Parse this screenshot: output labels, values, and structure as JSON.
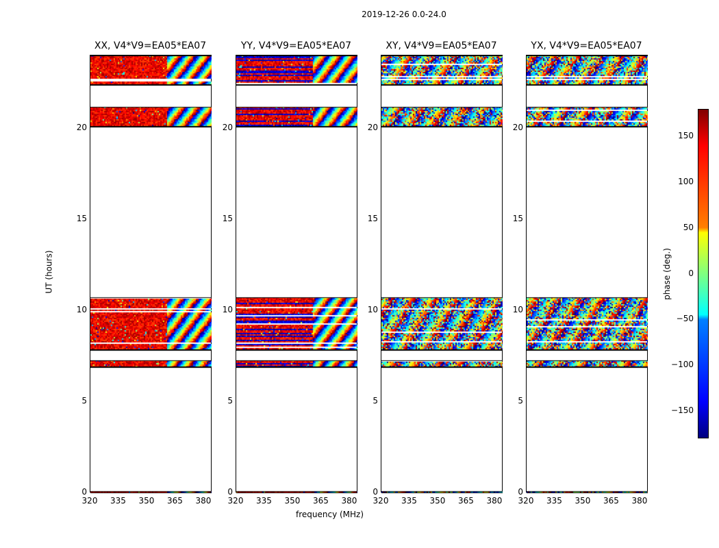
{
  "chart_data": {
    "type": "heatmap",
    "title": "2019-12-26 0.0-24.0",
    "xlabel": "frequency (MHz)",
    "ylabel": "UT (hours)",
    "xlim": [
      320,
      384
    ],
    "ylim": [
      0,
      24
    ],
    "xticks": [
      "320",
      "335",
      "350",
      "365",
      "380"
    ],
    "yticks": [
      "0",
      "5",
      "10",
      "15",
      "20"
    ],
    "panels": [
      {
        "title": "XX, V4*V9=EA05*EA07",
        "style": "parallel-red"
      },
      {
        "title": "YY, V4*V9=EA05*EA07",
        "style": "parallel-redblue"
      },
      {
        "title": "XY, V4*V9=EA05*EA07",
        "style": "cross-noise"
      },
      {
        "title": "YX, V4*V9=EA05*EA07",
        "style": "cross-noise"
      }
    ],
    "data_time_ranges_hours": [
      [
        0,
        0.1
      ],
      [
        6.9,
        7.3
      ],
      [
        7.85,
        10.75
      ],
      [
        20.1,
        21.2
      ],
      [
        22.4,
        24
      ]
    ],
    "colorbar": {
      "label": "phase (deg.)",
      "range": [
        -180,
        180
      ],
      "ticks": [
        "150",
        "100",
        "50",
        "0",
        "−50",
        "−100",
        "−150"
      ],
      "colormap": "jet"
    }
  }
}
